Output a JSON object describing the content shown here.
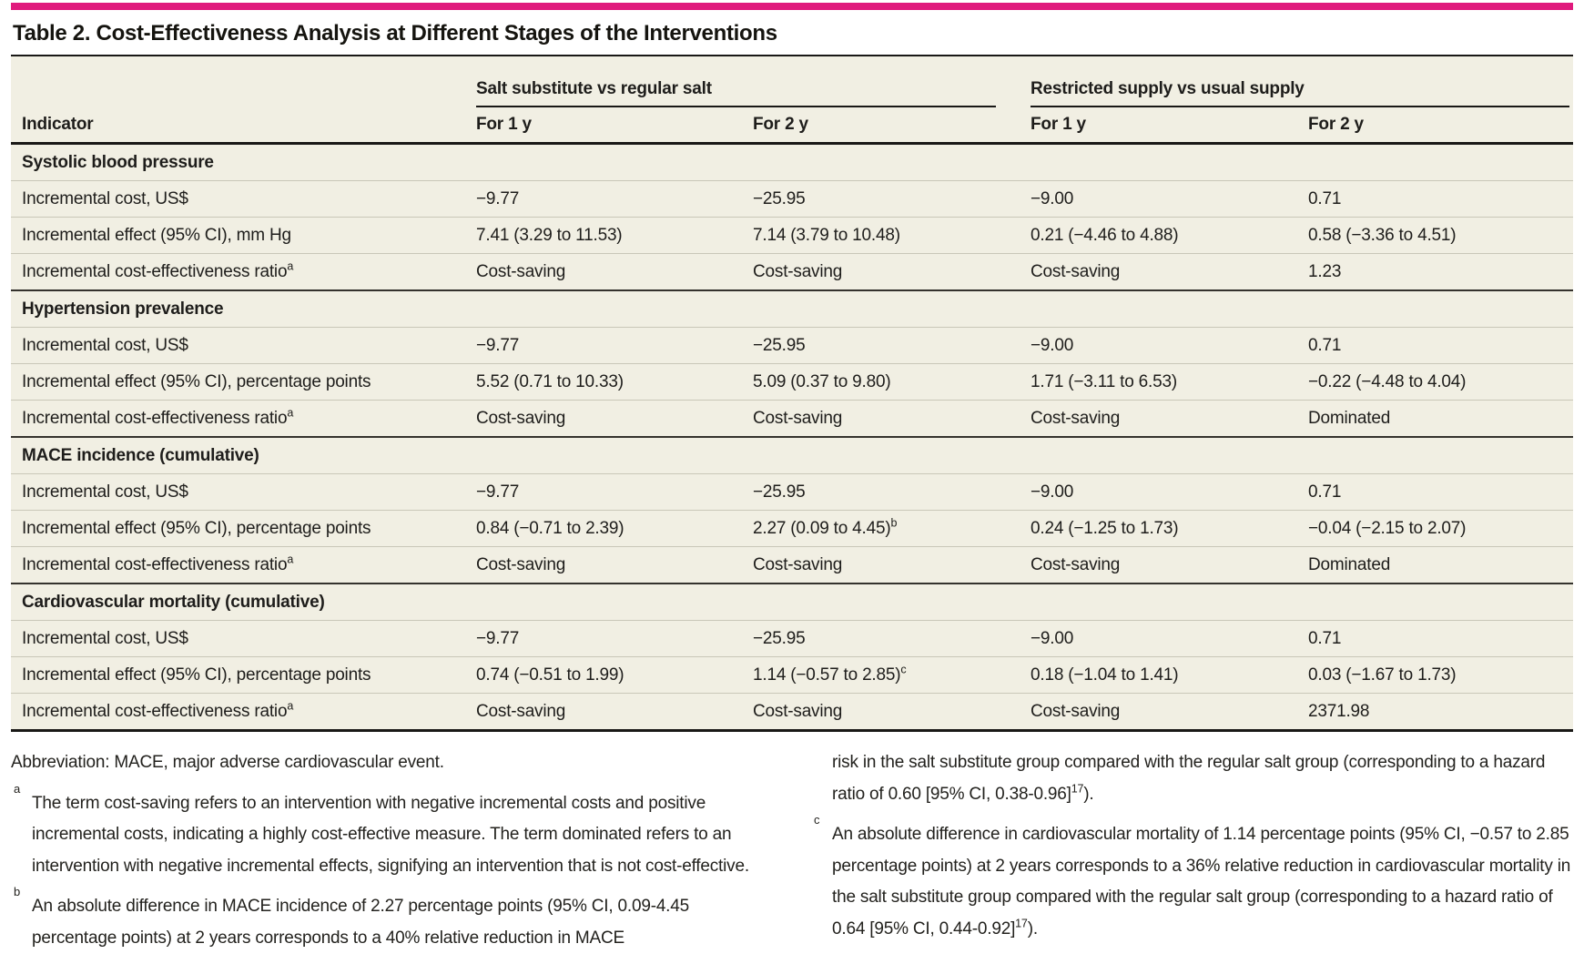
{
  "accent_color": "#e01a7d",
  "title": "Table 2. Cost-Effectiveness Analysis at Different Stages of the Interventions",
  "table": {
    "col_groups": [
      {
        "label": "Salt substitute vs regular salt"
      },
      {
        "label": "Restricted supply vs usual supply"
      }
    ],
    "columns": [
      "Indicator",
      "For 1 y",
      "For 2 y",
      "For 1 y",
      "For 2 y"
    ],
    "sections": [
      {
        "header": "Systolic blood pressure",
        "rows": [
          {
            "label": "Incremental cost, US$",
            "label_sup": "",
            "values": [
              {
                "text": "−9.77",
                "sup": ""
              },
              {
                "text": "−25.95",
                "sup": ""
              },
              {
                "text": "−9.00",
                "sup": ""
              },
              {
                "text": "0.71",
                "sup": ""
              }
            ]
          },
          {
            "label": "Incremental effect (95% CI), mm Hg",
            "label_sup": "",
            "values": [
              {
                "text": "7.41 (3.29 to 11.53)",
                "sup": ""
              },
              {
                "text": "7.14 (3.79 to 10.48)",
                "sup": ""
              },
              {
                "text": "0.21 (−4.46 to 4.88)",
                "sup": ""
              },
              {
                "text": "0.58 (−3.36 to 4.51)",
                "sup": ""
              }
            ]
          },
          {
            "label": "Incremental cost-effectiveness ratio",
            "label_sup": "a",
            "values": [
              {
                "text": "Cost-saving",
                "sup": ""
              },
              {
                "text": "Cost-saving",
                "sup": ""
              },
              {
                "text": "Cost-saving",
                "sup": ""
              },
              {
                "text": "1.23",
                "sup": ""
              }
            ]
          }
        ]
      },
      {
        "header": "Hypertension prevalence",
        "rows": [
          {
            "label": "Incremental cost, US$",
            "label_sup": "",
            "values": [
              {
                "text": "−9.77",
                "sup": ""
              },
              {
                "text": "−25.95",
                "sup": ""
              },
              {
                "text": "−9.00",
                "sup": ""
              },
              {
                "text": "0.71",
                "sup": ""
              }
            ]
          },
          {
            "label": "Incremental effect (95% CI), percentage points",
            "label_sup": "",
            "values": [
              {
                "text": "5.52 (0.71 to 10.33)",
                "sup": ""
              },
              {
                "text": "5.09 (0.37 to 9.80)",
                "sup": ""
              },
              {
                "text": "1.71 (−3.11 to 6.53)",
                "sup": ""
              },
              {
                "text": "−0.22 (−4.48 to 4.04)",
                "sup": ""
              }
            ]
          },
          {
            "label": "Incremental cost-effectiveness ratio",
            "label_sup": "a",
            "values": [
              {
                "text": "Cost-saving",
                "sup": ""
              },
              {
                "text": "Cost-saving",
                "sup": ""
              },
              {
                "text": "Cost-saving",
                "sup": ""
              },
              {
                "text": "Dominated",
                "sup": ""
              }
            ]
          }
        ]
      },
      {
        "header": "MACE incidence (cumulative)",
        "rows": [
          {
            "label": "Incremental cost, US$",
            "label_sup": "",
            "values": [
              {
                "text": "−9.77",
                "sup": ""
              },
              {
                "text": "−25.95",
                "sup": ""
              },
              {
                "text": "−9.00",
                "sup": ""
              },
              {
                "text": "0.71",
                "sup": ""
              }
            ]
          },
          {
            "label": "Incremental effect (95% CI), percentage points",
            "label_sup": "",
            "values": [
              {
                "text": "0.84 (−0.71 to 2.39)",
                "sup": ""
              },
              {
                "text": "2.27 (0.09 to 4.45)",
                "sup": "b"
              },
              {
                "text": "0.24 (−1.25 to 1.73)",
                "sup": ""
              },
              {
                "text": "−0.04 (−2.15 to 2.07)",
                "sup": ""
              }
            ]
          },
          {
            "label": "Incremental cost-effectiveness ratio",
            "label_sup": "a",
            "values": [
              {
                "text": "Cost-saving",
                "sup": ""
              },
              {
                "text": "Cost-saving",
                "sup": ""
              },
              {
                "text": "Cost-saving",
                "sup": ""
              },
              {
                "text": "Dominated",
                "sup": ""
              }
            ]
          }
        ]
      },
      {
        "header": "Cardiovascular mortality (cumulative)",
        "rows": [
          {
            "label": "Incremental cost, US$",
            "label_sup": "",
            "values": [
              {
                "text": "−9.77",
                "sup": ""
              },
              {
                "text": "−25.95",
                "sup": ""
              },
              {
                "text": "−9.00",
                "sup": ""
              },
              {
                "text": "0.71",
                "sup": ""
              }
            ]
          },
          {
            "label": "Incremental effect (95% CI), percentage points",
            "label_sup": "",
            "values": [
              {
                "text": "0.74 (−0.51 to 1.99)",
                "sup": ""
              },
              {
                "text": "1.14 (−0.57 to 2.85)",
                "sup": "c"
              },
              {
                "text": "0.18 (−1.04 to 1.41)",
                "sup": ""
              },
              {
                "text": "0.03 (−1.67 to 1.73)",
                "sup": ""
              }
            ]
          },
          {
            "label": "Incremental cost-effectiveness ratio",
            "label_sup": "a",
            "values": [
              {
                "text": "Cost-saving",
                "sup": ""
              },
              {
                "text": "Cost-saving",
                "sup": ""
              },
              {
                "text": "Cost-saving",
                "sup": ""
              },
              {
                "text": "2371.98",
                "sup": ""
              }
            ]
          }
        ]
      }
    ]
  },
  "footnotes": {
    "left": [
      {
        "marker": "",
        "indent": false,
        "parts": [
          {
            "text": "Abbreviation: MACE, major adverse cardiovascular event."
          }
        ]
      },
      {
        "marker": "a",
        "indent": true,
        "parts": [
          {
            "text": "The term cost-saving refers to an intervention with negative incremental costs and positive incremental costs, indicating a highly cost-effective measure. The term dominated refers to an intervention with negative incremental effects, signifying an intervention that is not cost-effective."
          }
        ]
      },
      {
        "marker": "b",
        "indent": true,
        "parts": [
          {
            "text": "An absolute difference in MACE incidence of 2.27 percentage points (95% CI, 0.09-4.45 percentage points) at 2 years corresponds to a 40% relative reduction in MACE"
          }
        ]
      }
    ],
    "right": [
      {
        "marker": "",
        "indent": true,
        "parts": [
          {
            "text": "risk in the salt substitute group compared with the regular salt group (corresponding to a hazard ratio of 0.60 [95% CI, 0.38-0.96]"
          },
          {
            "sup": "17"
          },
          {
            "text": ")."
          }
        ]
      },
      {
        "marker": "c",
        "indent": true,
        "parts": [
          {
            "text": "An absolute difference in cardiovascular mortality of 1.14 percentage points (95% CI, −0.57 to 2.85 percentage points) at 2 years corresponds to a 36% relative reduction in cardiovascular mortality in the salt substitute group compared with the regular salt group (corresponding to a hazard ratio of 0.64 [95% CI, 0.44-0.92]"
          },
          {
            "sup": "17"
          },
          {
            "text": ")."
          }
        ]
      }
    ]
  }
}
